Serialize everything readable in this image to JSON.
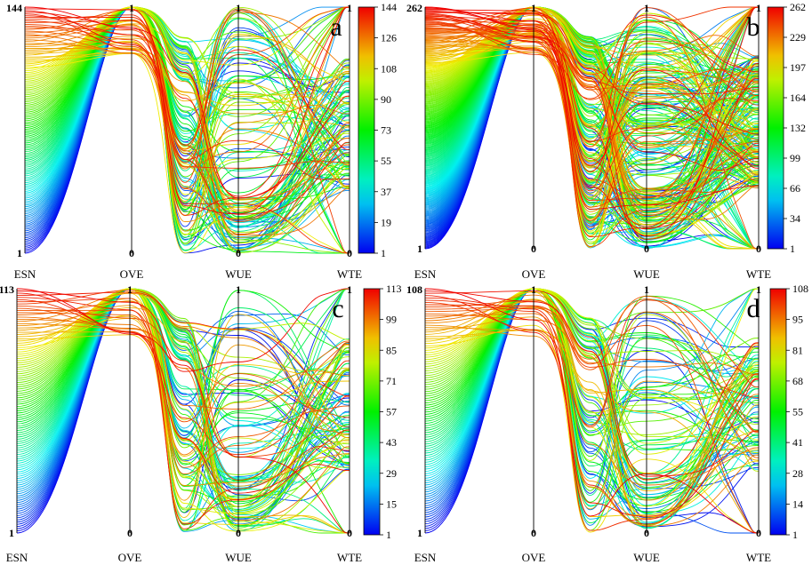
{
  "chart_data": [
    {
      "type": "parallel-coordinates",
      "panel_label": "a",
      "axes": [
        "ESN",
        "OVE",
        "WUE",
        "WTE"
      ],
      "axis_ranges": {
        "ESN": {
          "min": "1",
          "max": "144"
        },
        "OVE": {
          "min": "0",
          "max": "1"
        },
        "WUE": {
          "min": "0",
          "max": "1"
        },
        "WTE": {
          "min": "0",
          "max": "1"
        }
      },
      "colorbar": {
        "ticks": [
          "144",
          "126",
          "108",
          "90",
          "73",
          "55",
          "37",
          "19",
          "1"
        ],
        "min": 1,
        "max": 144
      },
      "n_lines": 144
    },
    {
      "type": "parallel-coordinates",
      "panel_label": "b",
      "axes": [
        "ESN",
        "OVE",
        "WUE",
        "WTE"
      ],
      "axis_ranges": {
        "ESN": {
          "min": "1",
          "max": "262"
        },
        "OVE": {
          "min": "0",
          "max": "1"
        },
        "WUE": {
          "min": "0",
          "max": "1"
        },
        "WTE": {
          "min": "0",
          "max": "1"
        }
      },
      "colorbar": {
        "ticks": [
          "262",
          "229",
          "197",
          "164",
          "132",
          "99",
          "66",
          "34",
          "1"
        ],
        "min": 1,
        "max": 262
      },
      "n_lines": 262
    },
    {
      "type": "parallel-coordinates",
      "panel_label": "c",
      "axes": [
        "ESN",
        "OVE",
        "WUE",
        "WTE"
      ],
      "axis_ranges": {
        "ESN": {
          "min": "1",
          "max": "113"
        },
        "OVE": {
          "min": "0",
          "max": "1"
        },
        "WUE": {
          "min": "0",
          "max": "1"
        },
        "WTE": {
          "min": "0",
          "max": "1"
        }
      },
      "colorbar": {
        "ticks": [
          "113",
          "99",
          "85",
          "71",
          "57",
          "43",
          "29",
          "15",
          "1"
        ],
        "min": 1,
        "max": 113
      },
      "n_lines": 113
    },
    {
      "type": "parallel-coordinates",
      "panel_label": "d",
      "axes": [
        "ESN",
        "OVE",
        "WUE",
        "WTE"
      ],
      "axis_ranges": {
        "ESN": {
          "min": "1",
          "max": "108"
        },
        "OVE": {
          "min": "0",
          "max": "1"
        },
        "WUE": {
          "min": "0",
          "max": "1"
        },
        "WTE": {
          "min": "0",
          "max": "1"
        }
      },
      "colorbar": {
        "ticks": [
          "108",
          "95",
          "81",
          "68",
          "55",
          "41",
          "28",
          "14",
          "1"
        ],
        "min": 1,
        "max": 108
      },
      "n_lines": 108
    }
  ]
}
